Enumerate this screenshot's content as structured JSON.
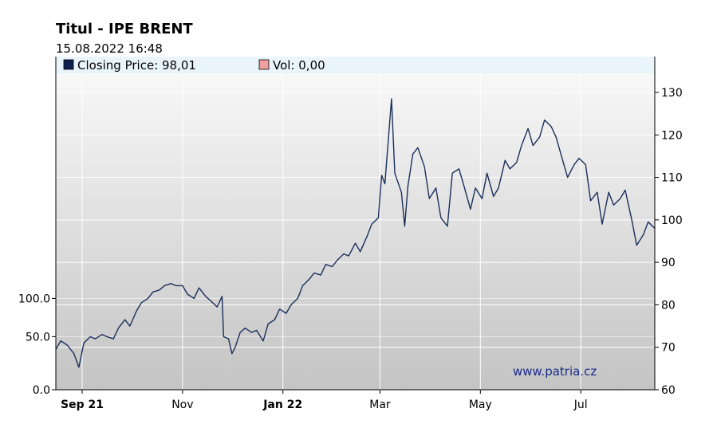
{
  "header": {
    "title": "Titul - IPE BRENT",
    "datetime": "15.08.2022 16:48"
  },
  "legend": [
    {
      "label": "Closing Price: 98,01",
      "color": "#0f1f4f"
    },
    {
      "label": "Vol: 0,00",
      "color": "#f0a0a0"
    }
  ],
  "watermark": "www.patria.cz",
  "colors": {
    "line": "#1b2f5b",
    "legend_band": "#eaf4fb",
    "plot_top": "#f8f8f8",
    "plot_bottom": "#c4c4c4",
    "grid": "#ffffff"
  },
  "chart_data": {
    "type": "line",
    "title": "Titul - IPE BRENT",
    "x_ticks": [
      {
        "label": "Sep 21",
        "x": "2021-09-01",
        "bold": true
      },
      {
        "label": "Nov",
        "x": "2021-11-01",
        "bold": false
      },
      {
        "label": "Jan 22",
        "x": "2022-01-01",
        "bold": true
      },
      {
        "label": "Mar",
        "x": "2022-03-01",
        "bold": false
      },
      {
        "label": "May",
        "x": "2022-05-01",
        "bold": false
      },
      {
        "label": "Jul",
        "x": "2022-07-01",
        "bold": false
      }
    ],
    "x_range": [
      "2021-08-16",
      "2022-08-15"
    ],
    "y_right": {
      "ticks": [
        60,
        70,
        80,
        90,
        100,
        110,
        120,
        130
      ],
      "range": [
        60,
        134.5
      ]
    },
    "y_left": {
      "ticks": [
        "0.0",
        "50.0",
        "100.0"
      ]
    },
    "grid": true,
    "series": [
      {
        "name": "Closing Price",
        "points": [
          [
            "2021-08-16",
            69.5
          ],
          [
            "2021-08-19",
            71.5
          ],
          [
            "2021-08-23",
            70.5
          ],
          [
            "2021-08-27",
            68.5
          ],
          [
            "2021-08-30",
            65.3
          ],
          [
            "2021-09-02",
            71.0
          ],
          [
            "2021-09-06",
            72.5
          ],
          [
            "2021-09-09",
            72.0
          ],
          [
            "2021-09-13",
            73.0
          ],
          [
            "2021-09-16",
            72.5
          ],
          [
            "2021-09-20",
            72.0
          ],
          [
            "2021-09-23",
            74.5
          ],
          [
            "2021-09-27",
            76.5
          ],
          [
            "2021-09-30",
            75.0
          ],
          [
            "2021-10-04",
            78.5
          ],
          [
            "2021-10-07",
            80.5
          ],
          [
            "2021-10-11",
            81.5
          ],
          [
            "2021-10-14",
            83.0
          ],
          [
            "2021-10-18",
            83.5
          ],
          [
            "2021-10-21",
            84.5
          ],
          [
            "2021-10-25",
            85.0
          ],
          [
            "2021-10-28",
            84.5
          ],
          [
            "2021-11-01",
            84.5
          ],
          [
            "2021-11-04",
            82.5
          ],
          [
            "2021-11-08",
            81.5
          ],
          [
            "2021-11-11",
            84.0
          ],
          [
            "2021-11-15",
            82.0
          ],
          [
            "2021-11-18",
            81.0
          ],
          [
            "2021-11-22",
            79.5
          ],
          [
            "2021-11-25",
            82.0
          ],
          [
            "2021-11-26",
            72.5
          ],
          [
            "2021-11-29",
            72.0
          ],
          [
            "2021-12-01",
            68.5
          ],
          [
            "2021-12-03",
            70.0
          ],
          [
            "2021-12-06",
            73.5
          ],
          [
            "2021-12-09",
            74.5
          ],
          [
            "2021-12-13",
            73.5
          ],
          [
            "2021-12-16",
            74.0
          ],
          [
            "2021-12-20",
            71.5
          ],
          [
            "2021-12-23",
            75.5
          ],
          [
            "2021-12-27",
            76.5
          ],
          [
            "2021-12-30",
            79.0
          ],
          [
            "2022-01-03",
            78.0
          ],
          [
            "2022-01-06",
            80.0
          ],
          [
            "2022-01-10",
            81.5
          ],
          [
            "2022-01-13",
            84.5
          ],
          [
            "2022-01-17",
            86.0
          ],
          [
            "2022-01-20",
            87.5
          ],
          [
            "2022-01-24",
            87.0
          ],
          [
            "2022-01-27",
            89.5
          ],
          [
            "2022-01-31",
            89.0
          ],
          [
            "2022-02-03",
            90.5
          ],
          [
            "2022-02-07",
            92.0
          ],
          [
            "2022-02-10",
            91.5
          ],
          [
            "2022-02-14",
            94.5
          ],
          [
            "2022-02-17",
            92.5
          ],
          [
            "2022-02-21",
            96.0
          ],
          [
            "2022-02-24",
            99.0
          ],
          [
            "2022-02-28",
            100.5
          ],
          [
            "2022-03-02",
            110.5
          ],
          [
            "2022-03-04",
            108.5
          ],
          [
            "2022-03-08",
            128.5
          ],
          [
            "2022-03-10",
            111.0
          ],
          [
            "2022-03-14",
            106.5
          ],
          [
            "2022-03-16",
            98.5
          ],
          [
            "2022-03-18",
            108.0
          ],
          [
            "2022-03-21",
            115.5
          ],
          [
            "2022-03-24",
            117.0
          ],
          [
            "2022-03-28",
            112.5
          ],
          [
            "2022-03-31",
            105.0
          ],
          [
            "2022-04-04",
            107.5
          ],
          [
            "2022-04-07",
            100.5
          ],
          [
            "2022-04-11",
            98.5
          ],
          [
            "2022-04-14",
            111.0
          ],
          [
            "2022-04-18",
            112.0
          ],
          [
            "2022-04-21",
            108.0
          ],
          [
            "2022-04-25",
            102.5
          ],
          [
            "2022-04-28",
            107.5
          ],
          [
            "2022-05-02",
            105.0
          ],
          [
            "2022-05-05",
            111.0
          ],
          [
            "2022-05-09",
            105.5
          ],
          [
            "2022-05-12",
            107.5
          ],
          [
            "2022-05-16",
            114.0
          ],
          [
            "2022-05-19",
            112.0
          ],
          [
            "2022-05-23",
            113.5
          ],
          [
            "2022-05-26",
            117.5
          ],
          [
            "2022-05-30",
            121.5
          ],
          [
            "2022-06-02",
            117.5
          ],
          [
            "2022-06-06",
            119.5
          ],
          [
            "2022-06-09",
            123.5
          ],
          [
            "2022-06-13",
            122.0
          ],
          [
            "2022-06-16",
            119.5
          ],
          [
            "2022-06-20",
            114.0
          ],
          [
            "2022-06-23",
            110.0
          ],
          [
            "2022-06-27",
            113.0
          ],
          [
            "2022-06-30",
            114.5
          ],
          [
            "2022-07-04",
            113.0
          ],
          [
            "2022-07-07",
            104.5
          ],
          [
            "2022-07-11",
            106.5
          ],
          [
            "2022-07-14",
            99.0
          ],
          [
            "2022-07-18",
            106.5
          ],
          [
            "2022-07-21",
            103.5
          ],
          [
            "2022-07-25",
            105.0
          ],
          [
            "2022-07-28",
            107.0
          ],
          [
            "2022-08-01",
            100.0
          ],
          [
            "2022-08-04",
            94.0
          ],
          [
            "2022-08-08",
            96.5
          ],
          [
            "2022-08-11",
            99.5
          ],
          [
            "2022-08-15",
            98.0
          ]
        ]
      }
    ]
  }
}
